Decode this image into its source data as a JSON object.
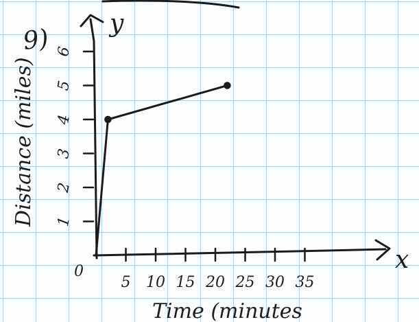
{
  "problem_number": "9)",
  "chart_data": {
    "type": "line",
    "title": "",
    "xlabel": "Time (minutes",
    "ylabel": "Distance (miles)",
    "x_axis_letter": "x",
    "y_axis_letter": "y",
    "origin_label": "0",
    "x_ticks": [
      "5",
      "10",
      "15",
      "20",
      "25",
      "30",
      "35"
    ],
    "y_ticks": [
      "1",
      "2",
      "3",
      "4",
      "5",
      "6"
    ],
    "xlim": [
      0,
      40
    ],
    "ylim": [
      0,
      6.5
    ],
    "grid": true,
    "series": [
      {
        "x": [
          0,
          2,
          22
        ],
        "y": [
          0,
          4,
          5
        ]
      }
    ],
    "marked_points": [
      {
        "x": 2,
        "y": 4
      },
      {
        "x": 22,
        "y": 5
      }
    ]
  },
  "colors": {
    "ink": "#1b1b1b",
    "grid": "#a9d0e9",
    "paper": "#fbfdff"
  }
}
